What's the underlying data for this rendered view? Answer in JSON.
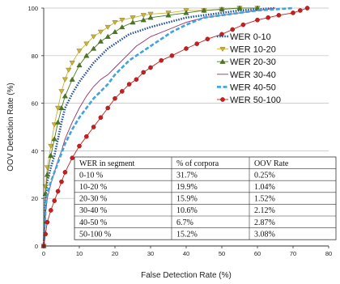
{
  "chart_data": {
    "type": "line",
    "xlabel": "False Detection Rate (%)",
    "ylabel": "OOV Detection Rate (%)",
    "xlim": [
      0,
      80
    ],
    "ylim": [
      0,
      100
    ],
    "xticks": [
      0,
      10,
      20,
      30,
      40,
      50,
      60,
      70,
      80
    ],
    "yticks": [
      0,
      20,
      40,
      60,
      80,
      100
    ],
    "grid": "horizontal",
    "legend_position": "right",
    "series": [
      {
        "name": "WER 0-10",
        "color": "#1f4e9c",
        "style": "dotted",
        "x": [
          0,
          0.5,
          1,
          2,
          3,
          4,
          5,
          6,
          8,
          10,
          12,
          14,
          16,
          18,
          20,
          22,
          24,
          26,
          28,
          30,
          35,
          40,
          45,
          50,
          55,
          60,
          65
        ],
        "y": [
          0,
          20,
          27,
          33,
          38,
          45,
          52,
          58,
          64,
          69,
          73,
          77,
          80,
          83,
          85,
          87,
          89,
          90,
          91,
          92,
          94,
          96,
          97,
          98,
          99,
          99.5,
          100
        ]
      },
      {
        "name": "WER 10-20",
        "color": "#c9b23a",
        "style": "triangle-down",
        "x": [
          0,
          0.5,
          1,
          2,
          3,
          4,
          5,
          6,
          7,
          8,
          10,
          12,
          14,
          16,
          18,
          20,
          22,
          25,
          28,
          30,
          35,
          40,
          45,
          50,
          55,
          60
        ],
        "y": [
          0,
          25,
          33,
          42,
          51,
          58,
          65,
          70,
          74,
          77,
          82,
          85,
          88,
          90,
          92,
          94,
          95,
          96,
          97,
          97.5,
          98,
          99,
          99,
          99.5,
          100,
          100
        ]
      },
      {
        "name": "WER 20-30",
        "color": "#4b7a1e",
        "style": "triangle-up",
        "x": [
          0,
          0.5,
          1,
          2,
          3,
          4,
          5,
          6,
          8,
          10,
          12,
          14,
          16,
          18,
          20,
          22,
          25,
          28,
          30,
          35,
          40,
          45,
          50,
          55,
          60
        ],
        "y": [
          0,
          22,
          30,
          38,
          45,
          52,
          58,
          63,
          70,
          76,
          80,
          83,
          86,
          88,
          90,
          92,
          94,
          95,
          96,
          97,
          98,
          99,
          99.5,
          100,
          100
        ]
      },
      {
        "name": "WER 30-40",
        "color": "#9a2f6a",
        "style": "solid",
        "x": [
          0,
          0.5,
          1,
          2,
          3,
          4,
          5,
          6,
          8,
          10,
          12,
          14,
          16,
          18,
          20,
          22,
          24,
          26,
          28,
          30,
          35,
          40,
          45,
          50,
          55,
          60,
          65
        ],
        "y": [
          0,
          14,
          20,
          26,
          31,
          36,
          40,
          45,
          52,
          58,
          63,
          67,
          70,
          72,
          75,
          78,
          81,
          84,
          86,
          88,
          91,
          94,
          96,
          97,
          98,
          99,
          100
        ]
      },
      {
        "name": "WER 40-50",
        "color": "#3fa3dd",
        "style": "dashed",
        "x": [
          0,
          0.5,
          1,
          2,
          3,
          4,
          5,
          6,
          8,
          10,
          12,
          14,
          16,
          18,
          20,
          22,
          24,
          26,
          28,
          30,
          33,
          36,
          40,
          45,
          50,
          55,
          60,
          65,
          70
        ],
        "y": [
          0,
          15,
          22,
          27,
          31,
          35,
          39,
          43,
          49,
          54,
          58,
          62,
          65,
          68,
          72,
          75,
          78,
          80,
          82,
          84,
          87,
          90,
          93,
          96,
          97,
          98,
          99,
          99.5,
          100
        ]
      },
      {
        "name": "WER 50-100",
        "color": "#c81e1e",
        "style": "circle",
        "x": [
          0,
          0.5,
          1,
          2,
          3,
          4,
          5,
          6,
          8,
          10,
          12,
          14,
          16,
          18,
          20,
          22,
          24,
          26,
          28,
          30,
          33,
          36,
          40,
          43,
          46,
          50,
          53,
          56,
          60,
          63,
          66,
          70,
          72,
          74
        ],
        "y": [
          0,
          5,
          10,
          15,
          19,
          23,
          27,
          31,
          37,
          42,
          46,
          50,
          54,
          58,
          62,
          65,
          68,
          70,
          73,
          75,
          78,
          80,
          83,
          85,
          87,
          89,
          91,
          93,
          95,
          96,
          97,
          98,
          99,
          100
        ]
      }
    ],
    "table": {
      "headers": [
        "WER in segment",
        "% of corpora",
        "OOV Rate"
      ],
      "rows": [
        [
          "0-10 %",
          "31.7%",
          "0.25%"
        ],
        [
          "10-20 %",
          "19.9%",
          "1.04%"
        ],
        [
          "20-30 %",
          "15.9%",
          "1.52%"
        ],
        [
          "30-40 %",
          "10.6%",
          "2.12%"
        ],
        [
          "40-50 %",
          "6.7%",
          "2.87%"
        ],
        [
          "50-100 %",
          "15.2%",
          "3.08%"
        ]
      ]
    }
  }
}
